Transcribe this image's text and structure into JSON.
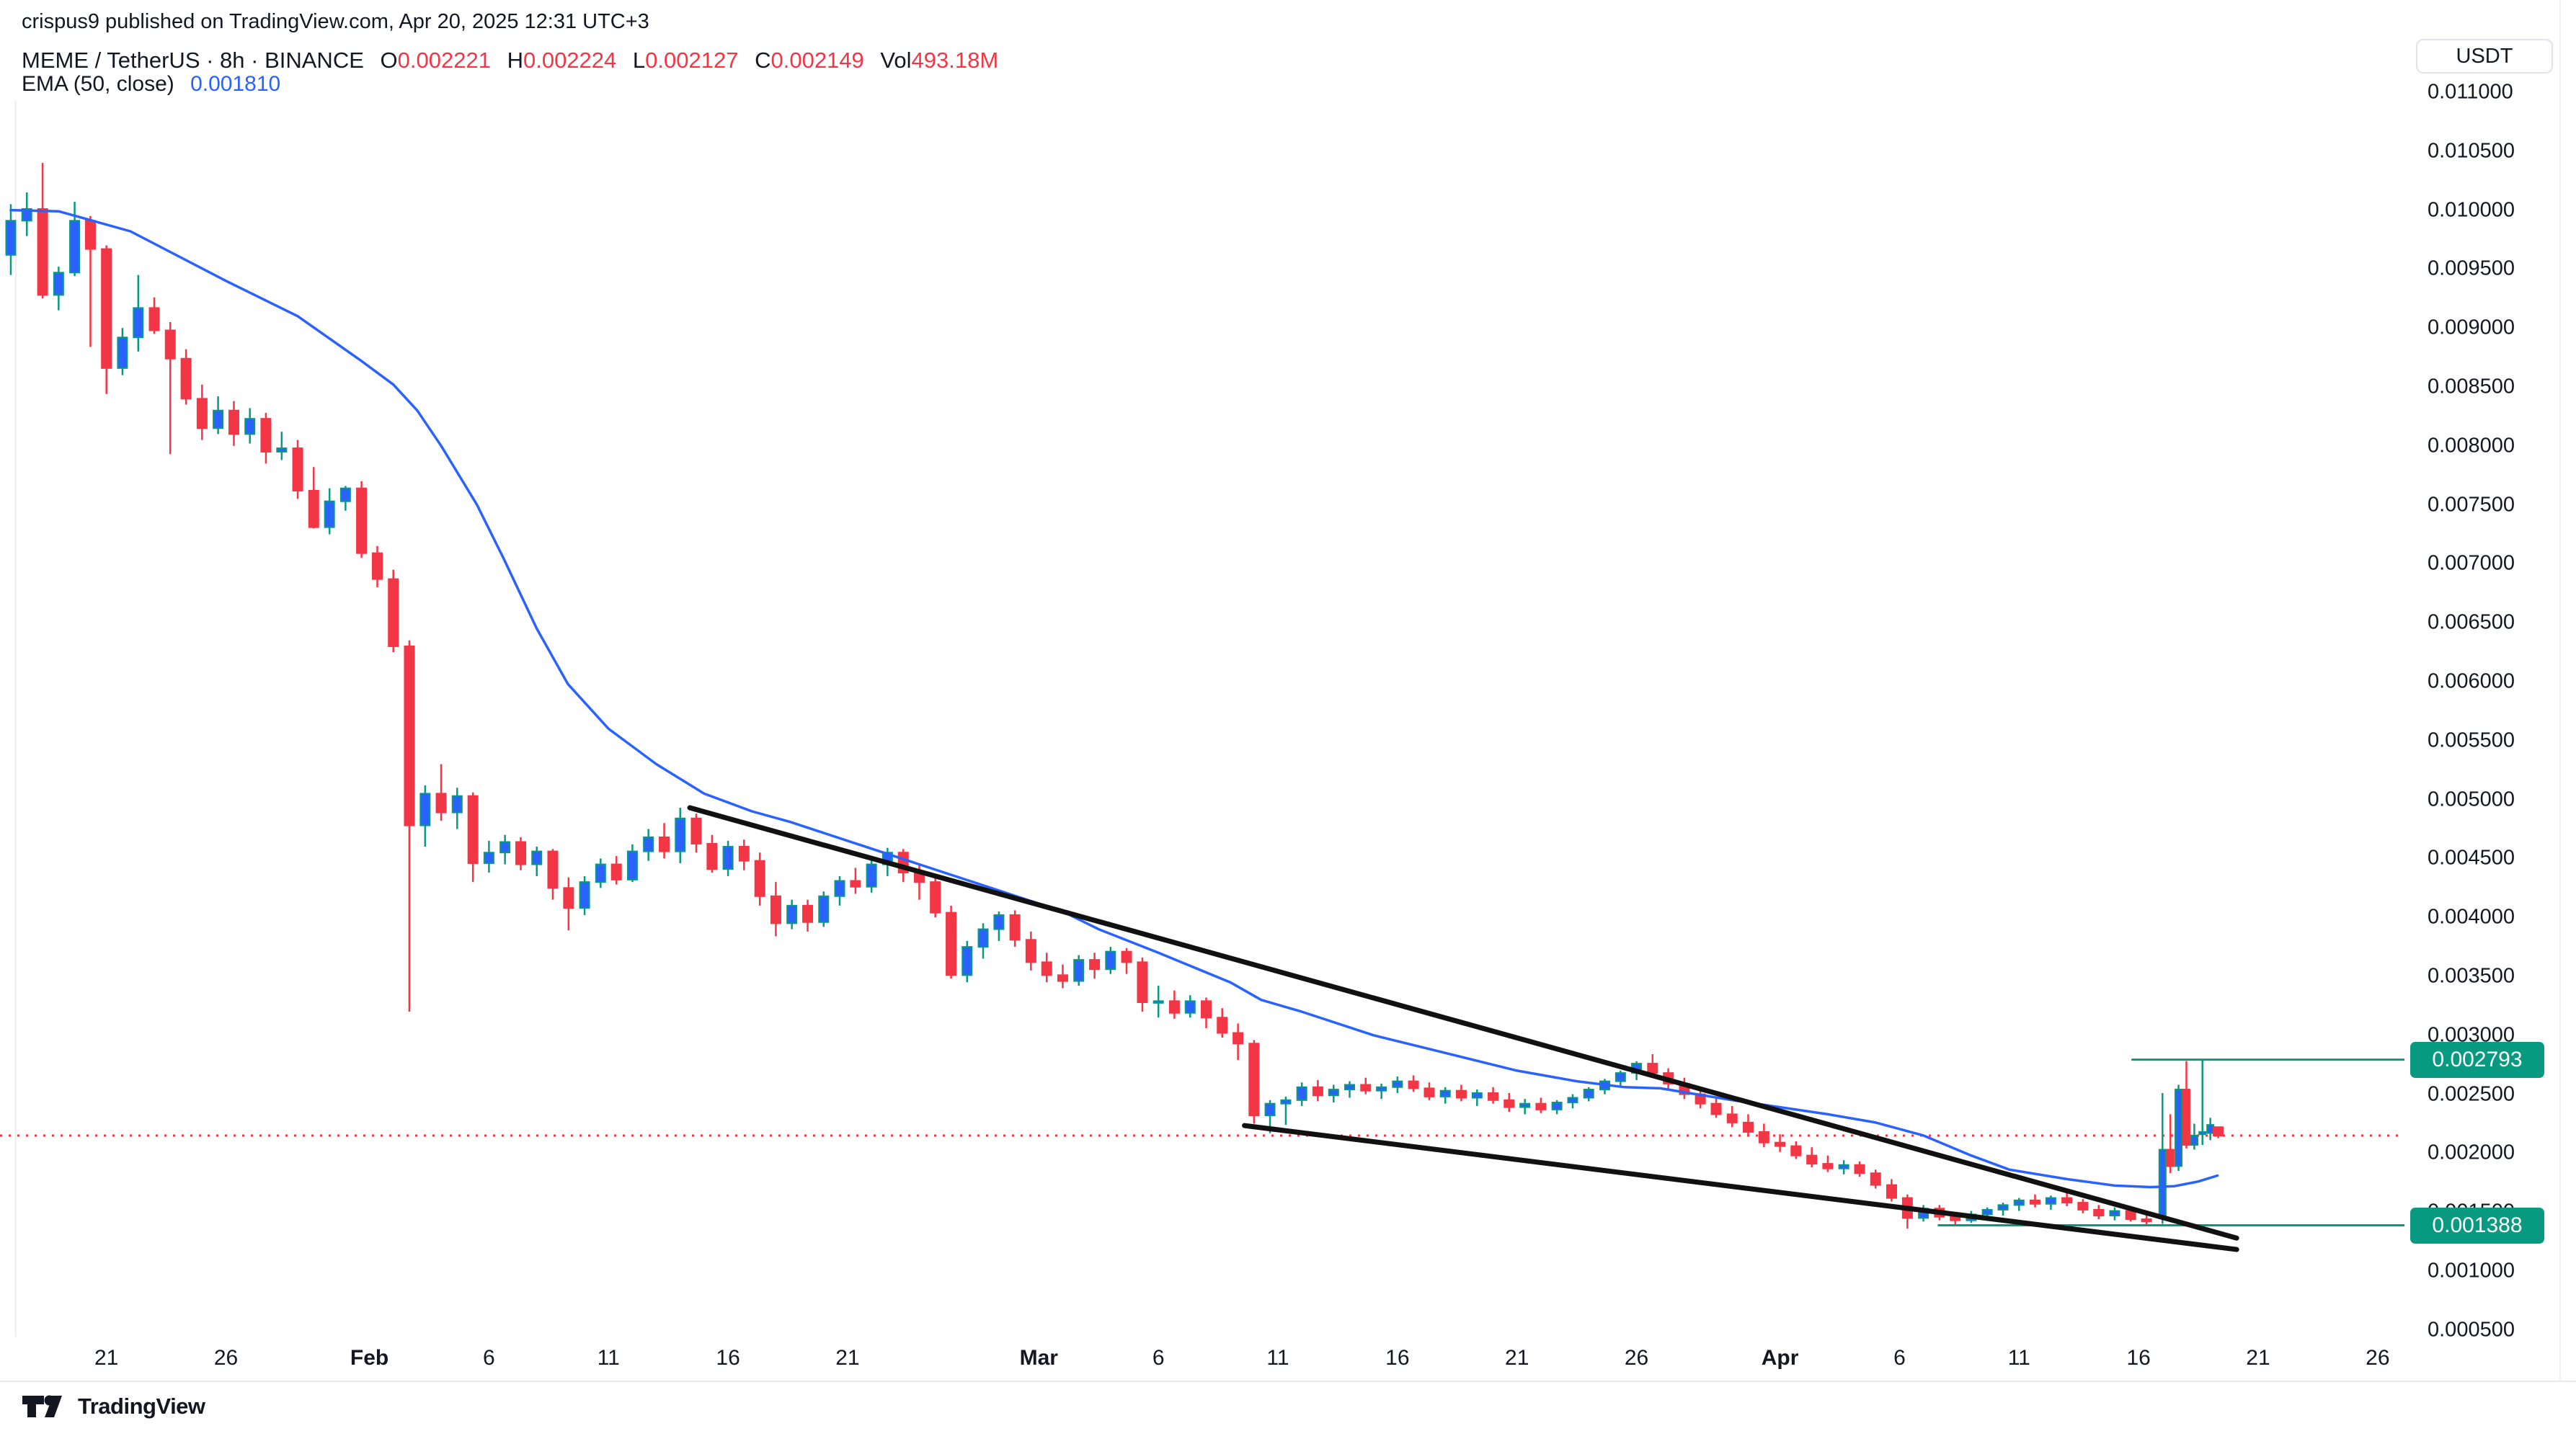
{
  "header": {
    "published": "crispus9 published on TradingView.com, Apr 20, 2025 12:31 UTC+3",
    "symbol": {
      "title": "MEME / TetherUS · 8h · BINANCE",
      "o_label": "O",
      "o": "0.002221",
      "h_label": "H",
      "h": "0.002224",
      "l_label": "L",
      "l": "0.002127",
      "c_label": "C",
      "c": "0.002149",
      "vol_label": "Vol",
      "vol": "493.18M"
    },
    "indicator": {
      "label": "EMA (50, close)",
      "value": "0.001810"
    }
  },
  "axis": {
    "currency": "USDT"
  },
  "price_line_labels": [
    {
      "text": "0.002793",
      "price_u": 2793
    },
    {
      "text": "0.001388",
      "price_u": 1388
    }
  ],
  "brand": {
    "name": "TradingView"
  },
  "colors": {
    "up_body": "#2962FF",
    "up_border": "#089981",
    "down": "#F23645",
    "ema": "#2962FF",
    "trendline": "#111111",
    "ray": "#089981",
    "last_price": "#F23645",
    "text": "#131722",
    "border": "#E0E3EB",
    "badge_bg": "#089981",
    "faint": "#ECECEC"
  },
  "chart_data": {
    "type": "candlestick",
    "symbol": "MEME/USDT",
    "exchange": "BINANCE",
    "timeframe": "8h",
    "title": "MEME / TetherUS 8h BINANCE with EMA(50) and falling wedge",
    "price_unit": "USDT, values in micro-units (value * 1e-6 USDT)",
    "x_unit": "days since 2025-01-17 00:00 UTC",
    "grid": "off",
    "legend_position": "top-left",
    "y_axis": {
      "min_u": 500,
      "max_u": 11000,
      "step_u": 500
    },
    "x_axis": {
      "min_d": 0,
      "max_d": 100.5,
      "ticks": [
        {
          "label": "21",
          "d": 4
        },
        {
          "label": "26",
          "d": 9
        },
        {
          "label": "Feb",
          "d": 15,
          "bold": true
        },
        {
          "label": "6",
          "d": 20
        },
        {
          "label": "11",
          "d": 25
        },
        {
          "label": "16",
          "d": 30
        },
        {
          "label": "21",
          "d": 35
        },
        {
          "label": "Mar",
          "d": 43,
          "bold": true
        },
        {
          "label": "6",
          "d": 48
        },
        {
          "label": "11",
          "d": 53
        },
        {
          "label": "16",
          "d": 58
        },
        {
          "label": "21",
          "d": 63
        },
        {
          "label": "26",
          "d": 68
        },
        {
          "label": "Apr",
          "d": 74,
          "bold": true
        },
        {
          "label": "6",
          "d": 79
        },
        {
          "label": "11",
          "d": 84
        },
        {
          "label": "16",
          "d": 89
        },
        {
          "label": "21",
          "d": 94
        },
        {
          "label": "26",
          "d": 99
        }
      ]
    },
    "price_labels": [
      "0.011000",
      "0.010500",
      "0.010000",
      "0.009500",
      "0.009000",
      "0.008500",
      "0.008000",
      "0.007500",
      "0.007000",
      "0.006500",
      "0.006000",
      "0.005500",
      "0.005000",
      "0.004500",
      "0.004000",
      "0.003500",
      "0.003000",
      "0.002500",
      "0.002000",
      "0.001500",
      "0.001000",
      "0.000500"
    ],
    "candles": [
      [
        0,
        9620,
        10050,
        9450,
        9910
      ],
      [
        0.67,
        9910,
        10150,
        9780,
        10010
      ],
      [
        1.33,
        10010,
        10400,
        9250,
        9280
      ],
      [
        2,
        9280,
        9520,
        9150,
        9470
      ],
      [
        2.67,
        9470,
        10070,
        9440,
        9910
      ],
      [
        3.33,
        9910,
        9950,
        8840,
        9670
      ],
      [
        4,
        9670,
        9700,
        8440,
        8660
      ],
      [
        4.67,
        8660,
        9000,
        8600,
        8920
      ],
      [
        5.33,
        8920,
        9450,
        8800,
        9170
      ],
      [
        6,
        9170,
        9260,
        8950,
        8980
      ],
      [
        6.67,
        8980,
        9050,
        7930,
        8740
      ],
      [
        7.33,
        8740,
        8820,
        8350,
        8400
      ],
      [
        8,
        8400,
        8520,
        8050,
        8150
      ],
      [
        8.67,
        8150,
        8420,
        8100,
        8300
      ],
      [
        9.33,
        8300,
        8380,
        8000,
        8100
      ],
      [
        10,
        8100,
        8320,
        8020,
        8230
      ],
      [
        10.67,
        8230,
        8280,
        7850,
        7950
      ],
      [
        11.33,
        7950,
        8120,
        7880,
        7980
      ],
      [
        12,
        7980,
        8050,
        7550,
        7620
      ],
      [
        12.67,
        7620,
        7820,
        7300,
        7310
      ],
      [
        13.33,
        7310,
        7640,
        7250,
        7530
      ],
      [
        14,
        7530,
        7660,
        7450,
        7640
      ],
      [
        14.67,
        7640,
        7700,
        7050,
        7090
      ],
      [
        15.33,
        7090,
        7150,
        6800,
        6870
      ],
      [
        16,
        6870,
        6950,
        6250,
        6300
      ],
      [
        16.67,
        6300,
        6350,
        3200,
        4780
      ],
      [
        17.33,
        4780,
        5120,
        4600,
        5050
      ],
      [
        18,
        5050,
        5300,
        4820,
        4890
      ],
      [
        18.67,
        4890,
        5100,
        4750,
        5030
      ],
      [
        19.33,
        5030,
        5060,
        4300,
        4460
      ],
      [
        20,
        4460,
        4650,
        4380,
        4550
      ],
      [
        20.67,
        4550,
        4700,
        4450,
        4640
      ],
      [
        21.33,
        4640,
        4680,
        4400,
        4450
      ],
      [
        22,
        4450,
        4600,
        4350,
        4560
      ],
      [
        22.67,
        4560,
        4580,
        4150,
        4250
      ],
      [
        23.33,
        4250,
        4340,
        3890,
        4080
      ],
      [
        24,
        4080,
        4350,
        4020,
        4300
      ],
      [
        24.67,
        4300,
        4500,
        4250,
        4450
      ],
      [
        25.33,
        4450,
        4520,
        4280,
        4320
      ],
      [
        26,
        4320,
        4620,
        4300,
        4560
      ],
      [
        26.67,
        4560,
        4750,
        4480,
        4680
      ],
      [
        27.33,
        4680,
        4800,
        4500,
        4560
      ],
      [
        28,
        4560,
        4930,
        4460,
        4840
      ],
      [
        28.67,
        4840,
        4880,
        4550,
        4625
      ],
      [
        29.33,
        4625,
        4700,
        4380,
        4410
      ],
      [
        30,
        4410,
        4650,
        4350,
        4600
      ],
      [
        30.67,
        4600,
        4660,
        4400,
        4480
      ],
      [
        31.33,
        4480,
        4550,
        4100,
        4180
      ],
      [
        32,
        4180,
        4300,
        3840,
        3950
      ],
      [
        32.67,
        3950,
        4150,
        3900,
        4100
      ],
      [
        33.33,
        4100,
        4150,
        3880,
        3960
      ],
      [
        34,
        3960,
        4220,
        3920,
        4180
      ],
      [
        34.67,
        4180,
        4350,
        4100,
        4310
      ],
      [
        35.33,
        4310,
        4420,
        4200,
        4260
      ],
      [
        36,
        4260,
        4500,
        4210,
        4450
      ],
      [
        36.67,
        4450,
        4590,
        4350,
        4550
      ],
      [
        37.33,
        4550,
        4580,
        4300,
        4380
      ],
      [
        38,
        4380,
        4450,
        4150,
        4300
      ],
      [
        38.67,
        4300,
        4350,
        4000,
        4040
      ],
      [
        39.33,
        4040,
        4100,
        3480,
        3510
      ],
      [
        40,
        3510,
        3800,
        3450,
        3750
      ],
      [
        40.67,
        3750,
        3950,
        3650,
        3900
      ],
      [
        41.33,
        3900,
        4050,
        3800,
        4020
      ],
      [
        42,
        4020,
        4060,
        3750,
        3810
      ],
      [
        42.67,
        3810,
        3880,
        3550,
        3620
      ],
      [
        43.33,
        3620,
        3700,
        3450,
        3510
      ],
      [
        44,
        3510,
        3600,
        3400,
        3460
      ],
      [
        44.67,
        3460,
        3680,
        3420,
        3640
      ],
      [
        45.33,
        3640,
        3700,
        3480,
        3560
      ],
      [
        46,
        3560,
        3750,
        3520,
        3710
      ],
      [
        46.67,
        3710,
        3740,
        3520,
        3620
      ],
      [
        47.33,
        3620,
        3660,
        3200,
        3280
      ],
      [
        48,
        3280,
        3420,
        3150,
        3290
      ],
      [
        48.67,
        3290,
        3380,
        3140,
        3190
      ],
      [
        49.33,
        3190,
        3340,
        3150,
        3290
      ],
      [
        50,
        3290,
        3320,
        3060,
        3150
      ],
      [
        50.67,
        3150,
        3230,
        2980,
        3020
      ],
      [
        51.33,
        3020,
        3100,
        2790,
        2930
      ],
      [
        52,
        2930,
        2960,
        2250,
        2320
      ],
      [
        52.67,
        2320,
        2450,
        2170,
        2420
      ],
      [
        53.33,
        2420,
        2480,
        2240,
        2450
      ],
      [
        54,
        2450,
        2600,
        2400,
        2560
      ],
      [
        54.67,
        2560,
        2620,
        2440,
        2490
      ],
      [
        55.33,
        2490,
        2580,
        2430,
        2540
      ],
      [
        56,
        2540,
        2610,
        2470,
        2580
      ],
      [
        56.67,
        2580,
        2640,
        2500,
        2530
      ],
      [
        57.33,
        2530,
        2590,
        2460,
        2560
      ],
      [
        58,
        2560,
        2650,
        2510,
        2610
      ],
      [
        58.67,
        2610,
        2660,
        2520,
        2550
      ],
      [
        59.33,
        2550,
        2600,
        2450,
        2480
      ],
      [
        60,
        2480,
        2560,
        2420,
        2530
      ],
      [
        60.67,
        2530,
        2580,
        2440,
        2470
      ],
      [
        61.33,
        2470,
        2540,
        2400,
        2510
      ],
      [
        62,
        2510,
        2560,
        2420,
        2450
      ],
      [
        62.67,
        2450,
        2510,
        2350,
        2390
      ],
      [
        63.33,
        2390,
        2460,
        2330,
        2420
      ],
      [
        64,
        2420,
        2470,
        2340,
        2370
      ],
      [
        64.67,
        2370,
        2450,
        2330,
        2430
      ],
      [
        65.33,
        2430,
        2500,
        2380,
        2470
      ],
      [
        66,
        2470,
        2560,
        2440,
        2540
      ],
      [
        66.67,
        2540,
        2630,
        2500,
        2610
      ],
      [
        67.33,
        2610,
        2700,
        2560,
        2680
      ],
      [
        68,
        2680,
        2780,
        2620,
        2760
      ],
      [
        68.67,
        2760,
        2840,
        2640,
        2680
      ],
      [
        69.33,
        2680,
        2720,
        2550,
        2590
      ],
      [
        70,
        2590,
        2640,
        2460,
        2500
      ],
      [
        70.67,
        2500,
        2560,
        2380,
        2420
      ],
      [
        71.33,
        2420,
        2480,
        2300,
        2330
      ],
      [
        72,
        2330,
        2400,
        2220,
        2260
      ],
      [
        72.67,
        2260,
        2330,
        2150,
        2180
      ],
      [
        73.33,
        2180,
        2250,
        2050,
        2090
      ],
      [
        74,
        2090,
        2160,
        2010,
        2060
      ],
      [
        74.67,
        2060,
        2100,
        1950,
        1980
      ],
      [
        75.33,
        1980,
        2050,
        1880,
        1910
      ],
      [
        76,
        1910,
        1980,
        1840,
        1870
      ],
      [
        76.67,
        1870,
        1940,
        1820,
        1900
      ],
      [
        77.33,
        1900,
        1930,
        1800,
        1830
      ],
      [
        78,
        1830,
        1860,
        1700,
        1730
      ],
      [
        78.67,
        1730,
        1780,
        1590,
        1620
      ],
      [
        79.33,
        1620,
        1650,
        1360,
        1450
      ],
      [
        80,
        1450,
        1560,
        1420,
        1530
      ],
      [
        80.67,
        1530,
        1560,
        1430,
        1460
      ],
      [
        81.33,
        1460,
        1500,
        1390,
        1430
      ],
      [
        82,
        1430,
        1510,
        1410,
        1480
      ],
      [
        82.67,
        1480,
        1540,
        1440,
        1520
      ],
      [
        83.33,
        1520,
        1580,
        1470,
        1560
      ],
      [
        84,
        1560,
        1620,
        1510,
        1600
      ],
      [
        84.67,
        1600,
        1650,
        1540,
        1570
      ],
      [
        85.33,
        1570,
        1640,
        1520,
        1620
      ],
      [
        86,
        1620,
        1660,
        1550,
        1580
      ],
      [
        86.67,
        1580,
        1610,
        1490,
        1520
      ],
      [
        87.33,
        1520,
        1560,
        1440,
        1470
      ],
      [
        88,
        1470,
        1540,
        1430,
        1510
      ],
      [
        88.67,
        1510,
        1530,
        1420,
        1440
      ],
      [
        89.33,
        1440,
        1480,
        1390,
        1420
      ],
      [
        90,
        1450,
        2510,
        1400,
        2030
      ],
      [
        90.33,
        2030,
        2330,
        1830,
        1890
      ],
      [
        90.67,
        1890,
        2580,
        1850,
        2540
      ],
      [
        91,
        2540,
        2780,
        2040,
        2070
      ],
      [
        91.33,
        2070,
        2250,
        2030,
        2150
      ],
      [
        91.67,
        2160,
        2793,
        2070,
        2180
      ],
      [
        92,
        2170,
        2300,
        2110,
        2240
      ],
      [
        92.33,
        2221,
        2224,
        2127,
        2149
      ]
    ],
    "ema50": [
      [
        0,
        10000
      ],
      [
        2,
        9990
      ],
      [
        5,
        9820
      ],
      [
        9,
        9400
      ],
      [
        12,
        9100
      ],
      [
        14.6,
        8730
      ],
      [
        16,
        8520
      ],
      [
        17,
        8300
      ],
      [
        18,
        8000
      ],
      [
        19.5,
        7500
      ],
      [
        20.6,
        7050
      ],
      [
        22,
        6450
      ],
      [
        23.3,
        5980
      ],
      [
        25,
        5600
      ],
      [
        27,
        5300
      ],
      [
        29,
        5050
      ],
      [
        31,
        4900
      ],
      [
        32.6,
        4810
      ],
      [
        35,
        4650
      ],
      [
        38,
        4450
      ],
      [
        41,
        4250
      ],
      [
        44,
        4050
      ],
      [
        45.5,
        3900
      ],
      [
        48,
        3700
      ],
      [
        51,
        3450
      ],
      [
        52.3,
        3300
      ],
      [
        54,
        3200
      ],
      [
        57,
        3000
      ],
      [
        60,
        2850
      ],
      [
        63,
        2700
      ],
      [
        65.5,
        2610
      ],
      [
        67.5,
        2560
      ],
      [
        69,
        2550
      ],
      [
        70.5,
        2500
      ],
      [
        72,
        2450
      ],
      [
        74,
        2390
      ],
      [
        76,
        2330
      ],
      [
        78,
        2260
      ],
      [
        80,
        2150
      ],
      [
        82,
        1980
      ],
      [
        83.6,
        1860
      ],
      [
        86,
        1780
      ],
      [
        88,
        1725
      ],
      [
        89.5,
        1712
      ],
      [
        90.5,
        1720
      ],
      [
        91.5,
        1760
      ],
      [
        92.3,
        1810
      ]
    ],
    "trendlines": [
      {
        "name": "wedge-upper",
        "from": [
          28.4,
          4930
        ],
        "to": [
          93.1,
          1280
        ]
      },
      {
        "name": "wedge-lower",
        "from": [
          51.6,
          2234
        ],
        "to": [
          93.1,
          1183
        ]
      }
    ],
    "horizontal_rays": [
      {
        "price_u": 2793,
        "from_d": 88.7
      },
      {
        "price_u": 1388,
        "from_d": 80.6
      }
    ],
    "last_price_line_u": 2149,
    "vertical_line_d": 0.2,
    "ohlc_last": {
      "o_u": 2221,
      "h_u": 2224,
      "l_u": 2127,
      "c_u": 2149,
      "vol": "493.18M"
    },
    "ema_last_u": 1810
  }
}
